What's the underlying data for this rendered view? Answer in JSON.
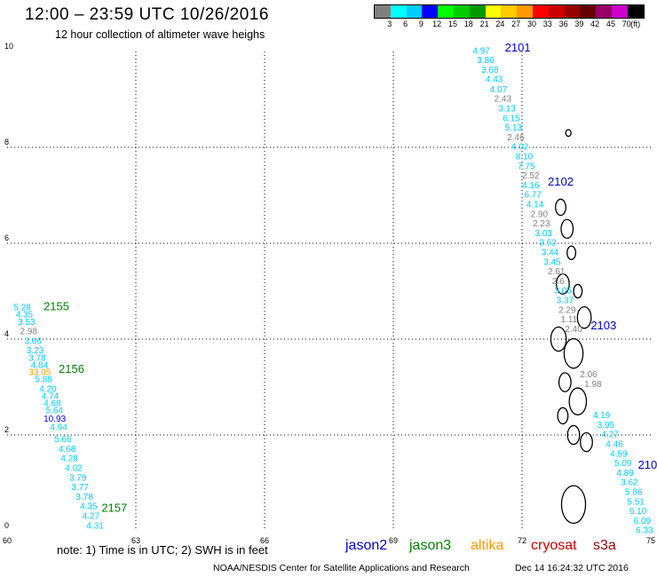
{
  "header": {
    "title": "12:00 – 23:59 UTC 10/26/2016",
    "subtitle": "12 hour collection of altimeter wave heighs"
  },
  "colorbar": {
    "colors": [
      "#808080",
      "#00ffff",
      "#00ccff",
      "#0000ff",
      "#00ff00",
      "#00cc00",
      "#009900",
      "#ffff00",
      "#ffcc00",
      "#ff9900",
      "#ff0000",
      "#cc0000",
      "#990000",
      "#660000",
      "#990066",
      "#cc00cc",
      "#000000"
    ],
    "labels": [
      "3",
      "6",
      "9",
      "12",
      "15",
      "18",
      "21",
      "24",
      "27",
      "30",
      "33",
      "36",
      "39",
      "42",
      "45",
      "70",
      "(ft)"
    ]
  },
  "map": {
    "x_ticks": [
      "60",
      "63",
      "66",
      "69",
      "72",
      "75"
    ],
    "y_ticks": [
      "0",
      "2",
      "4",
      "6",
      "8",
      "10"
    ],
    "xlim": [
      60,
      75
    ],
    "ylim": [
      0,
      10
    ]
  },
  "passes": [
    {
      "label": "2101",
      "color": "#0000cc",
      "lon": 71.6,
      "lat": 10.0
    },
    {
      "label": "2102",
      "color": "#0000cc",
      "lon": 72.6,
      "lat": 7.2
    },
    {
      "label": "2103",
      "color": "#0000cc",
      "lon": 73.6,
      "lat": 4.2
    },
    {
      "label": "210",
      "color": "#0000cc",
      "lon": 74.7,
      "lat": 1.3
    },
    {
      "label": "2155",
      "color": "#008000",
      "lon": 60.85,
      "lat": 4.6
    },
    {
      "label": "2156",
      "color": "#008000",
      "lon": 61.2,
      "lat": 3.3
    },
    {
      "label": "2157",
      "color": "#008000",
      "lon": 62.2,
      "lat": 0.4
    }
  ],
  "swh_values": [
    {
      "v": "4.97",
      "c": "#00ccff",
      "lon": 70.85,
      "lat": 9.95
    },
    {
      "v": "3.86",
      "c": "#00ccff",
      "lon": 70.95,
      "lat": 9.76
    },
    {
      "v": "3.68",
      "c": "#00ccff",
      "lon": 71.05,
      "lat": 9.56
    },
    {
      "v": "4.43",
      "c": "#00ccff",
      "lon": 71.15,
      "lat": 9.36
    },
    {
      "v": "4.07",
      "c": "#00ccff",
      "lon": 71.25,
      "lat": 9.15
    },
    {
      "v": "2.43",
      "c": "#808080",
      "lon": 71.35,
      "lat": 8.95
    },
    {
      "v": "3.13",
      "c": "#00ccff",
      "lon": 71.45,
      "lat": 8.75
    },
    {
      "v": "6.15",
      "c": "#00ccff",
      "lon": 71.55,
      "lat": 8.55
    },
    {
      "v": "5.13",
      "c": "#00ccff",
      "lon": 71.6,
      "lat": 8.35
    },
    {
      "v": "2.46",
      "c": "#808080",
      "lon": 71.65,
      "lat": 8.15
    },
    {
      "v": "4.02",
      "c": "#00ccff",
      "lon": 71.75,
      "lat": 7.95
    },
    {
      "v": "8.10",
      "c": "#00ccff",
      "lon": 71.85,
      "lat": 7.75
    },
    {
      "v": "7.75",
      "c": "#00ccff",
      "lon": 71.9,
      "lat": 7.55
    },
    {
      "v": "2.52",
      "c": "#808080",
      "lon": 72.0,
      "lat": 7.35
    },
    {
      "v": "4.16",
      "c": "#00ccff",
      "lon": 72.0,
      "lat": 7.15
    },
    {
      "v": "6.77",
      "c": "#00ccff",
      "lon": 72.05,
      "lat": 6.95
    },
    {
      "v": "4.14",
      "c": "#00ccff",
      "lon": 72.1,
      "lat": 6.75
    },
    {
      "v": "2.90",
      "c": "#808080",
      "lon": 72.2,
      "lat": 6.55
    },
    {
      "v": "2.23",
      "c": "#808080",
      "lon": 72.25,
      "lat": 6.35
    },
    {
      "v": "3.03",
      "c": "#00ccff",
      "lon": 72.3,
      "lat": 6.15
    },
    {
      "v": "3.62",
      "c": "#00ccff",
      "lon": 72.4,
      "lat": 5.95
    },
    {
      "v": "3.44",
      "c": "#00ccff",
      "lon": 72.45,
      "lat": 5.75
    },
    {
      "v": "3.45",
      "c": "#00ccff",
      "lon": 72.5,
      "lat": 5.55
    },
    {
      "v": "2.61",
      "c": "#808080",
      "lon": 72.6,
      "lat": 5.35
    },
    {
      "v": "2.6",
      "c": "#808080",
      "lon": 72.7,
      "lat": 5.15
    },
    {
      "v": "3.05",
      "c": "#00ccff",
      "lon": 72.75,
      "lat": 4.95
    },
    {
      "v": "3.37",
      "c": "#00ccff",
      "lon": 72.8,
      "lat": 4.75
    },
    {
      "v": "2.29",
      "c": "#808080",
      "lon": 72.85,
      "lat": 4.55
    },
    {
      "v": "1.11",
      "c": "#808080",
      "lon": 72.9,
      "lat": 4.35
    },
    {
      "v": "2.40",
      "c": "#808080",
      "lon": 73.0,
      "lat": 4.15
    },
    {
      "v": "2.06",
      "c": "#808080",
      "lon": 73.35,
      "lat": 3.2
    },
    {
      "v": "1.98",
      "c": "#808080",
      "lon": 73.45,
      "lat": 3.0
    },
    {
      "v": "4.19",
      "c": "#00ccff",
      "lon": 73.65,
      "lat": 2.35
    },
    {
      "v": "3.95",
      "c": "#00ccff",
      "lon": 73.75,
      "lat": 2.15
    },
    {
      "v": "4.27",
      "c": "#00ccff",
      "lon": 73.85,
      "lat": 1.95
    },
    {
      "v": "4.46",
      "c": "#00ccff",
      "lon": 73.95,
      "lat": 1.75
    },
    {
      "v": "4.59",
      "c": "#00ccff",
      "lon": 74.05,
      "lat": 1.55
    },
    {
      "v": "5.09",
      "c": "#00ccff",
      "lon": 74.15,
      "lat": 1.35
    },
    {
      "v": "4.89",
      "c": "#00ccff",
      "lon": 74.2,
      "lat": 1.15
    },
    {
      "v": "3.62",
      "c": "#00ccff",
      "lon": 74.3,
      "lat": 0.95
    },
    {
      "v": "5.86",
      "c": "#00ccff",
      "lon": 74.4,
      "lat": 0.75
    },
    {
      "v": "5.51",
      "c": "#00ccff",
      "lon": 74.45,
      "lat": 0.55
    },
    {
      "v": "6.10",
      "c": "#00ccff",
      "lon": 74.5,
      "lat": 0.35
    },
    {
      "v": "6.09",
      "c": "#00ccff",
      "lon": 74.6,
      "lat": 0.15
    },
    {
      "v": "6.33",
      "c": "#00ccff",
      "lon": 74.65,
      "lat": -0.05
    },
    {
      "v": "5.28",
      "c": "#00ccff",
      "lon": 60.15,
      "lat": 4.6
    },
    {
      "v": "4.35",
      "c": "#00ccff",
      "lon": 60.2,
      "lat": 4.45
    },
    {
      "v": "3.53",
      "c": "#00ccff",
      "lon": 60.25,
      "lat": 4.3
    },
    {
      "v": "2.98",
      "c": "#808080",
      "lon": 60.3,
      "lat": 4.1
    },
    {
      "v": "3.66",
      "c": "#00ccff",
      "lon": 60.4,
      "lat": 3.9
    },
    {
      "v": "3.23",
      "c": "#00ccff",
      "lon": 60.45,
      "lat": 3.7
    },
    {
      "v": "3.78",
      "c": "#00ccff",
      "lon": 60.5,
      "lat": 3.55
    },
    {
      "v": "4.84",
      "c": "#00ccff",
      "lon": 60.55,
      "lat": 3.4
    },
    {
      "v": "33.05",
      "c": "#ff9900",
      "lon": 60.5,
      "lat": 3.25
    },
    {
      "v": "5.88",
      "c": "#00ccff",
      "lon": 60.65,
      "lat": 3.1
    },
    {
      "v": "4.20",
      "c": "#00ccff",
      "lon": 60.75,
      "lat": 2.9
    },
    {
      "v": "4.74",
      "c": "#00ccff",
      "lon": 60.8,
      "lat": 2.75
    },
    {
      "v": "4.68",
      "c": "#00ccff",
      "lon": 60.85,
      "lat": 2.6
    },
    {
      "v": "5.64",
      "c": "#00ccff",
      "lon": 60.9,
      "lat": 2.45
    },
    {
      "v": "10.93",
      "c": "#0000ff",
      "lon": 60.85,
      "lat": 2.28
    },
    {
      "v": "4.94",
      "c": "#00ccff",
      "lon": 61.0,
      "lat": 2.1
    },
    {
      "v": "5.66",
      "c": "#00ccff",
      "lon": 61.1,
      "lat": 1.85
    },
    {
      "v": "4.68",
      "c": "#00ccff",
      "lon": 61.2,
      "lat": 1.65
    },
    {
      "v": "4.28",
      "c": "#00ccff",
      "lon": 61.25,
      "lat": 1.45
    },
    {
      "v": "4.02",
      "c": "#00ccff",
      "lon": 61.35,
      "lat": 1.25
    },
    {
      "v": "3.79",
      "c": "#00ccff",
      "lon": 61.45,
      "lat": 1.05
    },
    {
      "v": "3.77",
      "c": "#00ccff",
      "lon": 61.5,
      "lat": 0.85
    },
    {
      "v": "3.78",
      "c": "#00ccff",
      "lon": 61.6,
      "lat": 0.65
    },
    {
      "v": "4.35",
      "c": "#00ccff",
      "lon": 61.7,
      "lat": 0.45
    },
    {
      "v": "4.27",
      "c": "#00ccff",
      "lon": 61.75,
      "lat": 0.25
    },
    {
      "v": "4.31",
      "c": "#00ccff",
      "lon": 61.85,
      "lat": 0.05
    }
  ],
  "islands": [
    {
      "lon": 73.08,
      "lat": 8.3,
      "r": 0.05
    },
    {
      "lon": 72.9,
      "lat": 6.75,
      "r": 0.12
    },
    {
      "lon": 73.05,
      "lat": 6.3,
      "r": 0.14
    },
    {
      "lon": 73.15,
      "lat": 5.8,
      "r": 0.1
    },
    {
      "lon": 72.95,
      "lat": 5.15,
      "r": 0.15
    },
    {
      "lon": 73.3,
      "lat": 5.0,
      "r": 0.1
    },
    {
      "lon": 73.45,
      "lat": 4.45,
      "r": 0.16
    },
    {
      "lon": 72.85,
      "lat": 4.0,
      "r": 0.18
    },
    {
      "lon": 73.2,
      "lat": 3.7,
      "r": 0.22
    },
    {
      "lon": 73.0,
      "lat": 3.1,
      "r": 0.14
    },
    {
      "lon": 73.3,
      "lat": 2.7,
      "r": 0.2
    },
    {
      "lon": 72.95,
      "lat": 2.4,
      "r": 0.12
    },
    {
      "lon": 73.2,
      "lat": 2.0,
      "r": 0.14
    },
    {
      "lon": 73.5,
      "lat": 1.85,
      "r": 0.14
    },
    {
      "lon": 73.2,
      "lat": 0.55,
      "r": 0.28
    }
  ],
  "footer": {
    "note": "note:  1) Time is in UTC;  2) SWH is in feet",
    "legend": [
      {
        "name": "jason2",
        "color": "#0000cc"
      },
      {
        "name": "jason3",
        "color": "#008000"
      },
      {
        "name": "altika",
        "color": "#ff9900"
      },
      {
        "name": "cryosat",
        "color": "#cc0000"
      },
      {
        "name": "s3a",
        "color": "#990000"
      }
    ],
    "credit": "NOAA/NESDIS Center for Satellite Applications and Research",
    "timestamp": "Dec 14 16:24:32 UTC 2016"
  }
}
